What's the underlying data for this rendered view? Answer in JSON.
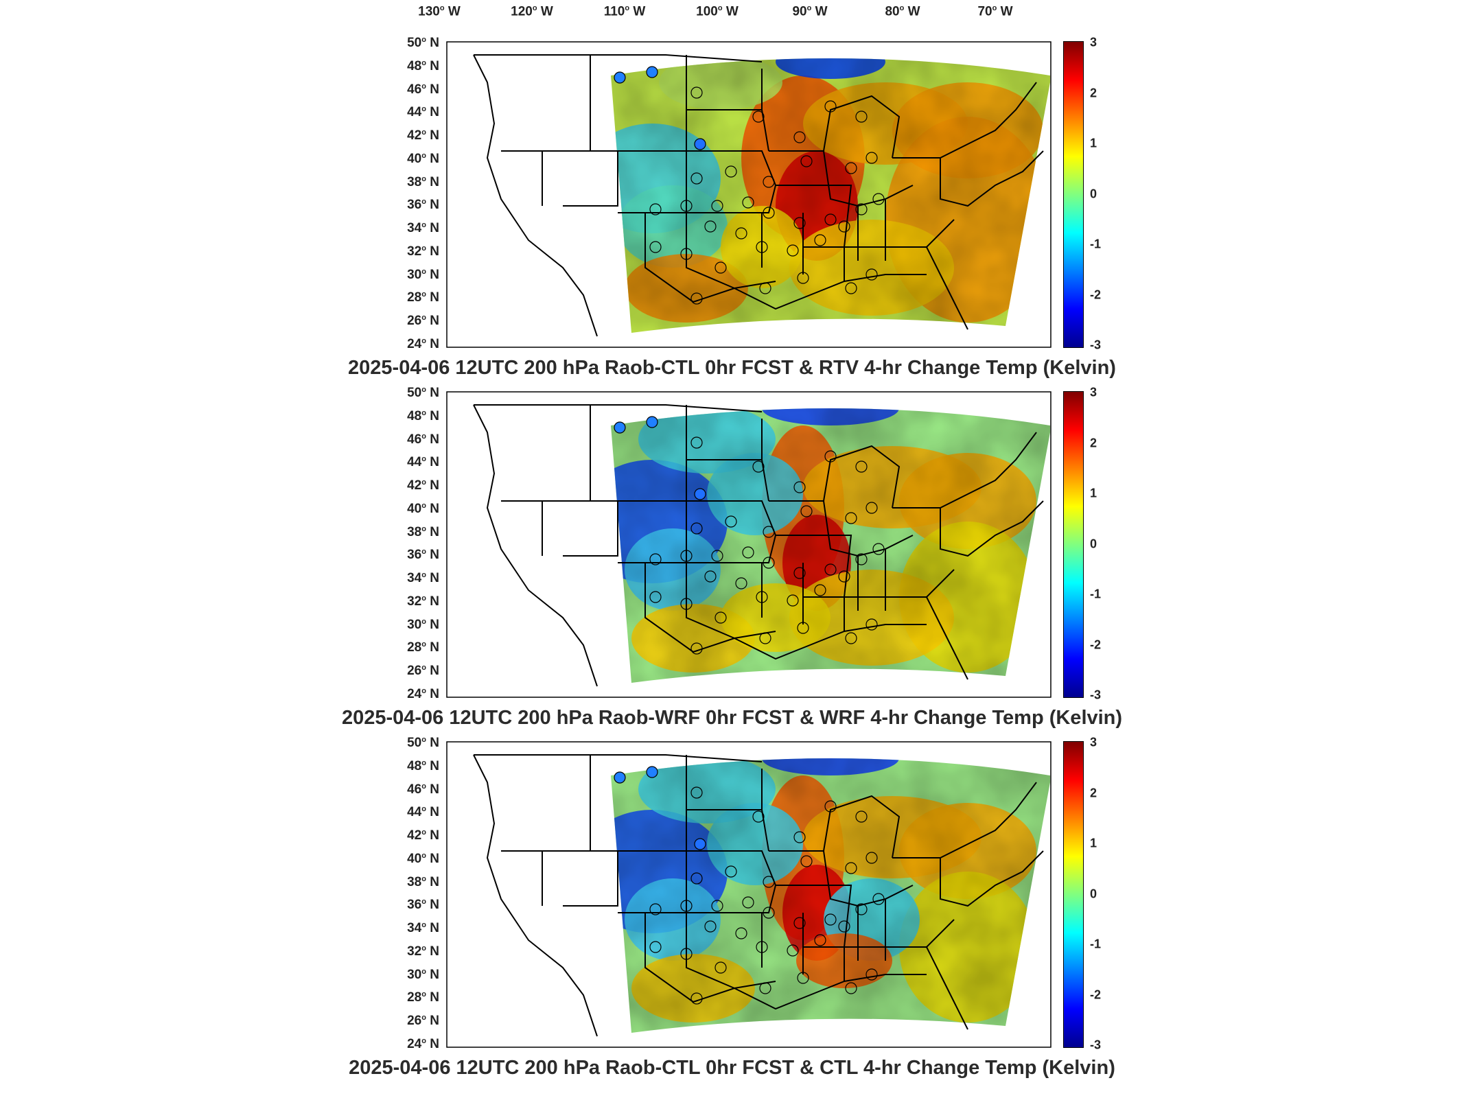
{
  "lon_labels": [
    {
      "deg": "130",
      "hem": "W"
    },
    {
      "deg": "120",
      "hem": "W"
    },
    {
      "deg": "110",
      "hem": "W"
    },
    {
      "deg": "100",
      "hem": "W"
    },
    {
      "deg": "90",
      "hem": "W"
    },
    {
      "deg": "80",
      "hem": "W"
    },
    {
      "deg": "70",
      "hem": "W"
    }
  ],
  "lat_labels": [
    {
      "deg": "50",
      "hem": "N"
    },
    {
      "deg": "48",
      "hem": "N"
    },
    {
      "deg": "46",
      "hem": "N"
    },
    {
      "deg": "44",
      "hem": "N"
    },
    {
      "deg": "42",
      "hem": "N"
    },
    {
      "deg": "40",
      "hem": "N"
    },
    {
      "deg": "38",
      "hem": "N"
    },
    {
      "deg": "36",
      "hem": "N"
    },
    {
      "deg": "34",
      "hem": "N"
    },
    {
      "deg": "32",
      "hem": "N"
    },
    {
      "deg": "30",
      "hem": "N"
    },
    {
      "deg": "28",
      "hem": "N"
    },
    {
      "deg": "26",
      "hem": "N"
    },
    {
      "deg": "24",
      "hem": "N"
    }
  ],
  "colorbar": {
    "min": -3,
    "max": 3,
    "ticks": [
      "3",
      "2",
      "1",
      "0",
      "-1",
      "-2",
      "-3"
    ],
    "colormap": [
      "#00008f",
      "#0000ff",
      "#0080ff",
      "#00ffff",
      "#80ff80",
      "#ffff00",
      "#ff8000",
      "#ff0000",
      "#800000"
    ]
  },
  "panels": [
    {
      "title": "2025-04-06 12UTC 200 hPa Raob-CTL 0hr FCST & RTV 4-hr Change Temp (Kelvin)"
    },
    {
      "title": "2025-04-06 12UTC 200 hPa Raob-WRF 0hr FCST & WRF 4-hr Change Temp (Kelvin)"
    },
    {
      "title": "2025-04-06 12UTC 200 hPa Raob-CTL 0hr FCST & CTL 4-hr Change Temp (Kelvin)"
    }
  ]
}
